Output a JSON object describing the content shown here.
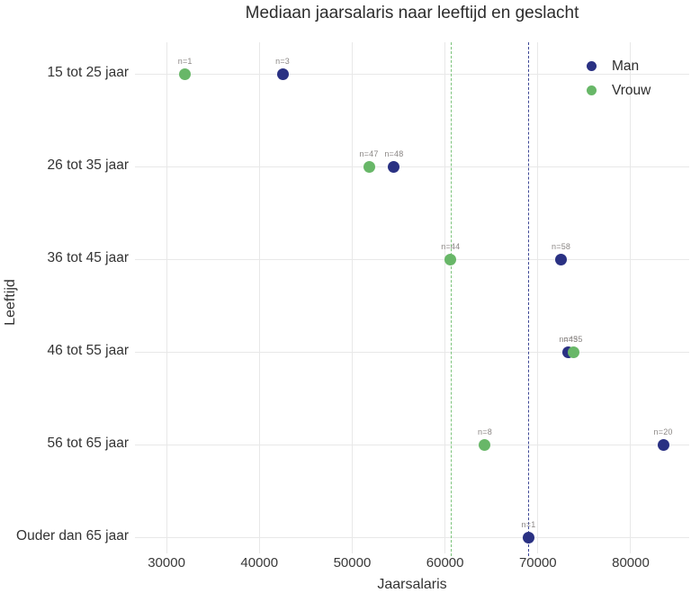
{
  "chart_data": {
    "type": "scatter",
    "title": "Mediaan jaarsalaris naar leeftijd en geslacht",
    "xlabel": "Jaarsalaris",
    "ylabel": "Leeftijd",
    "categories": [
      "15 tot 25 jaar",
      "26 tot 35 jaar",
      "36 tot 45 jaar",
      "46 tot 55 jaar",
      "56 tot 65 jaar",
      "Ouder dan 65 jaar"
    ],
    "x_ticks": [
      30000,
      40000,
      50000,
      60000,
      70000,
      80000
    ],
    "xlim": [
      26600,
      86300
    ],
    "grid": true,
    "legend_position": "upper-right-inside",
    "point_label_prefix": "n=",
    "series": [
      {
        "name": "Man",
        "color": "#2a3183",
        "points": [
          {
            "category": "15 tot 25 jaar",
            "value": 42500,
            "n": 3
          },
          {
            "category": "26 tot 35 jaar",
            "value": 54500,
            "n": 48
          },
          {
            "category": "36 tot 45 jaar",
            "value": 72500,
            "n": 58
          },
          {
            "category": "46 tot 55 jaar",
            "value": 73300,
            "n": 45
          },
          {
            "category": "56 tot 65 jaar",
            "value": 83500,
            "n": 20
          },
          {
            "category": "Ouder dan 65 jaar",
            "value": 69000,
            "n": 1
          }
        ]
      },
      {
        "name": "Vrouw",
        "color": "#68b768",
        "points": [
          {
            "category": "15 tot 25 jaar",
            "value": 32000,
            "n": 1
          },
          {
            "category": "26 tot 35 jaar",
            "value": 51800,
            "n": 47
          },
          {
            "category": "36 tot 45 jaar",
            "value": 60600,
            "n": 44
          },
          {
            "category": "46 tot 55 jaar",
            "value": 73800,
            "n": 35
          },
          {
            "category": "56 tot 65 jaar",
            "value": 64300,
            "n": 8
          }
        ]
      }
    ],
    "reference_lines": [
      {
        "name": "mediaan-vrouw",
        "value": 60600,
        "color": "#7cc47c"
      },
      {
        "name": "mediaan-man",
        "value": 69000,
        "color": "#3d4796"
      }
    ]
  }
}
